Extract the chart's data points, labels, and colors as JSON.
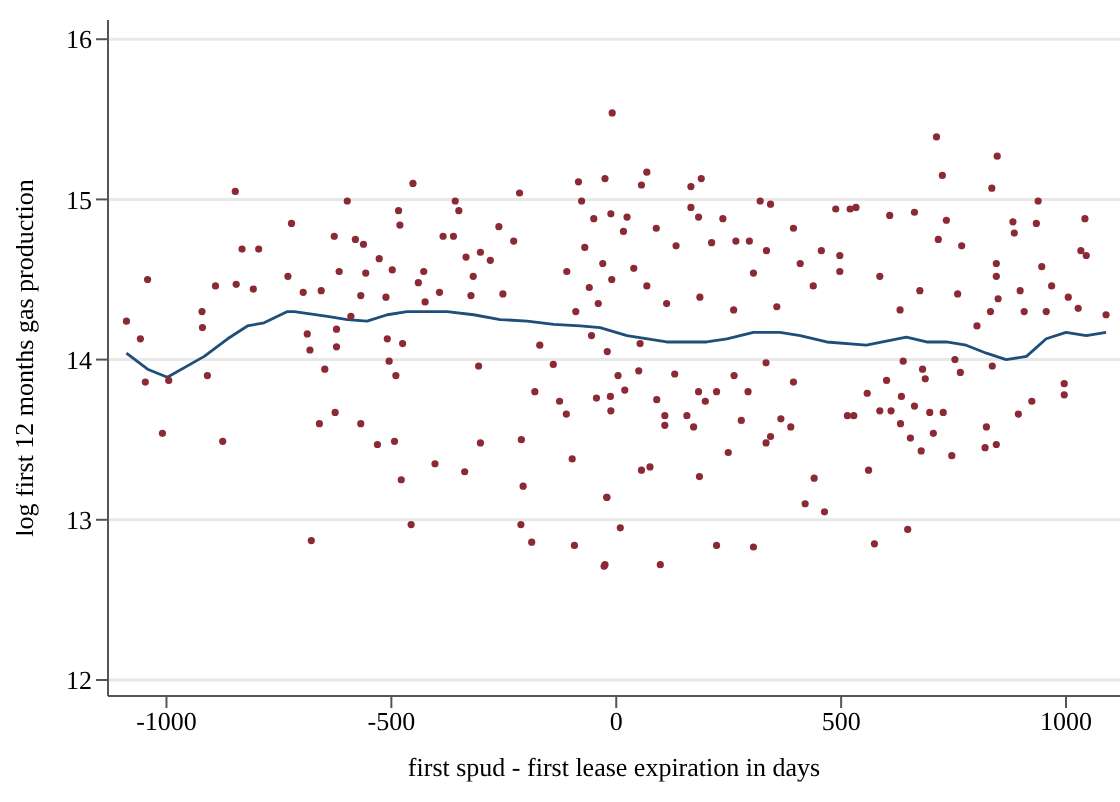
{
  "chart_data": {
    "type": "scatter",
    "xlabel": "first spud - first lease expiration in days",
    "ylabel": "log first 12 months gas production",
    "xlim": [
      -1130,
      1120
    ],
    "xticks": [
      -1000,
      -500,
      0,
      500,
      1000
    ],
    "ylim": [
      11.9,
      16.12
    ],
    "yticks": [
      12,
      13,
      14,
      15,
      16
    ],
    "grid": "y",
    "legend": false,
    "series": [
      {
        "color": "#8b2a35",
        "marker": "circle",
        "x": [
          -1089,
          -1058,
          -1047,
          -1042,
          -1009,
          -995,
          -909,
          -921,
          -920,
          -891,
          -875,
          -847,
          -845,
          -832,
          -795,
          -807,
          -730,
          -722,
          -696,
          -687,
          -681,
          -678,
          -660,
          -656,
          -648,
          -627,
          -625,
          -622,
          -622,
          -616,
          -598,
          -590,
          -580,
          -568,
          -568,
          -562,
          -557,
          -531,
          -527,
          -512,
          -509,
          -505,
          -498,
          -493,
          -490,
          -484,
          -481,
          -478,
          -475,
          -456,
          -452,
          -440,
          -428,
          -425,
          -403,
          -393,
          -385,
          -362,
          -358,
          -350,
          -337,
          -334,
          -323,
          -318,
          -306,
          -302,
          -302,
          -261,
          -280,
          -252,
          -228,
          -215,
          -211,
          -212,
          -207,
          -188,
          -181,
          -170,
          -140,
          -126,
          -111,
          -98,
          -93,
          -84,
          -77,
          -50,
          -44,
          -25,
          -21,
          -25,
          -60,
          -30,
          -90,
          -20,
          -70,
          -40,
          -10,
          -110,
          -55,
          -9,
          56,
          68,
          166,
          189,
          166,
          183,
          237,
          320,
          343,
          24,
          -12,
          16,
          89,
          133,
          212,
          266,
          296,
          334,
          394,
          456,
          488,
          520,
          533,
          608,
          663,
          712,
          725,
          734,
          768,
          716,
          847,
          835,
          882,
          885,
          934,
          938,
          1042,
          1033,
          1045,
          1089,
          1027,
          1005,
          968,
          946,
          898,
          907,
          956,
          996,
          996,
          924,
          894,
          836,
          845,
          823,
          820,
          832,
          849,
          845,
          845,
          802,
          765,
          753,
          746,
          759,
          727,
          705,
          678,
          654,
          697,
          663,
          687,
          681,
          638,
          634,
          632,
          648,
          611,
          586,
          601,
          558,
          561,
          574,
          514,
          528,
          440,
          420,
          463,
          394,
          388,
          366,
          343,
          333,
          305,
          333,
          293,
          278,
          262,
          249,
          223,
          185,
          157,
          183,
          223,
          198,
          172,
          130,
          108,
          108,
          90,
          75,
          56,
          9,
          98,
          -21,
          -27,
          19,
          4,
          -13,
          -12,
          50,
          53,
          112,
          261,
          357,
          438,
          497,
          586,
          631,
          675,
          409,
          497,
          305,
          186,
          68,
          39
        ],
        "values": [
          14.24,
          14.13,
          13.86,
          14.5,
          13.54,
          13.87,
          13.9,
          14.3,
          14.2,
          14.46,
          13.49,
          15.05,
          14.47,
          14.69,
          14.69,
          14.44,
          14.52,
          14.85,
          14.42,
          14.16,
          14.06,
          12.87,
          13.6,
          14.43,
          13.94,
          14.77,
          13.67,
          14.08,
          14.19,
          14.55,
          14.99,
          14.27,
          14.75,
          14.4,
          13.6,
          14.72,
          14.54,
          13.47,
          14.63,
          14.39,
          14.13,
          13.99,
          14.56,
          13.49,
          13.9,
          14.93,
          14.84,
          13.25,
          14.1,
          12.97,
          15.1,
          14.48,
          14.55,
          14.36,
          13.35,
          14.42,
          14.77,
          14.77,
          14.99,
          14.93,
          13.3,
          14.64,
          14.4,
          14.52,
          13.96,
          13.48,
          14.67,
          14.83,
          14.62,
          14.41,
          14.74,
          15.04,
          13.5,
          12.97,
          13.21,
          12.86,
          13.8,
          14.09,
          13.97,
          13.74,
          13.66,
          13.38,
          12.84,
          15.11,
          14.99,
          14.88,
          13.76,
          12.72,
          13.14,
          15.13,
          14.45,
          14.6,
          14.3,
          14.05,
          14.7,
          14.35,
          14.5,
          14.55,
          14.15,
          15.54,
          15.09,
          15.17,
          15.08,
          15.13,
          14.95,
          14.89,
          14.88,
          14.99,
          14.97,
          14.89,
          14.91,
          14.8,
          14.82,
          14.71,
          14.73,
          14.74,
          14.74,
          14.68,
          14.82,
          14.68,
          14.94,
          14.94,
          14.95,
          14.9,
          14.92,
          15.39,
          15.15,
          14.87,
          14.71,
          14.75,
          15.27,
          15.07,
          14.86,
          14.79,
          14.85,
          14.99,
          14.88,
          14.68,
          14.65,
          14.28,
          14.32,
          14.39,
          14.46,
          14.58,
          14.43,
          14.3,
          14.3,
          13.85,
          13.78,
          13.74,
          13.66,
          13.96,
          13.47,
          13.58,
          13.45,
          14.3,
          14.38,
          14.52,
          14.6,
          14.21,
          13.92,
          14,
          13.4,
          14.41,
          13.67,
          13.54,
          13.43,
          13.51,
          13.67,
          13.71,
          13.88,
          13.94,
          13.99,
          13.77,
          13.6,
          12.94,
          13.68,
          13.68,
          13.87,
          13.79,
          13.31,
          12.85,
          13.65,
          13.65,
          13.26,
          13.1,
          13.05,
          13.86,
          13.58,
          13.63,
          13.52,
          13.48,
          12.83,
          13.98,
          13.8,
          13.62,
          13.9,
          13.42,
          12.84,
          13.27,
          13.65,
          13.8,
          13.8,
          13.74,
          13.58,
          13.91,
          13.65,
          13.59,
          13.75,
          13.33,
          13.31,
          12.95,
          12.72,
          13.14,
          12.71,
          13.81,
          13.9,
          13.77,
          13.68,
          13.93,
          14.1,
          14.35,
          14.31,
          14.33,
          14.46,
          14.55,
          14.52,
          14.31,
          14.43,
          14.6,
          14.65,
          14.54,
          14.39,
          14.46,
          14.57
        ]
      },
      {
        "type": "line",
        "color": "#1f4e79",
        "marker": "none",
        "x": [
          -1089,
          -1042,
          -998,
          -916,
          -864,
          -820,
          -783,
          -731,
          -716,
          -642,
          -598,
          -554,
          -509,
          -465,
          -376,
          -317,
          -258,
          -198,
          -139,
          -80,
          -36,
          24,
          112,
          201,
          246,
          305,
          364,
          409,
          468,
          556,
          645,
          690,
          734,
          778,
          823,
          867,
          912,
          956,
          1000,
          1045,
          1089
        ],
        "values": [
          14.04,
          13.94,
          13.89,
          14.02,
          14.13,
          14.21,
          14.23,
          14.3,
          14.3,
          14.27,
          14.25,
          14.24,
          14.28,
          14.3,
          14.3,
          14.28,
          14.25,
          14.24,
          14.22,
          14.21,
          14.2,
          14.15,
          14.11,
          14.11,
          14.13,
          14.17,
          14.17,
          14.15,
          14.11,
          14.09,
          14.14,
          14.11,
          14.11,
          14.09,
          14.04,
          14,
          14.02,
          14.13,
          14.17,
          14.15,
          14.17
        ]
      }
    ]
  }
}
